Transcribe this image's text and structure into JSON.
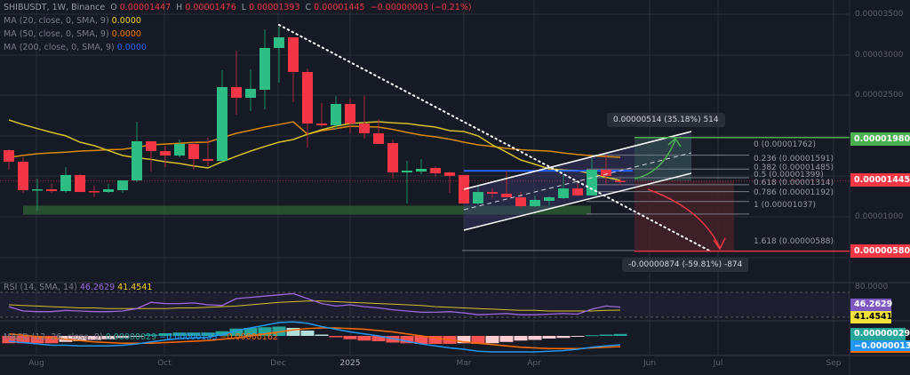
{
  "header": {
    "symbol": "SHIBUSDT, 1W, Binance",
    "o_label": "O",
    "o": "0.00001447",
    "h_label": "H",
    "h": "0.00001476",
    "l_label": "L",
    "l": "0.00001393",
    "c_label": "C",
    "c": "0.00001445",
    "change": "−0.00000003 (−0.21%)"
  },
  "indicators": {
    "ma20": {
      "label": "MA (20, close, 0, SMA, 9)",
      "value": "0.0000",
      "color": "#f2d024"
    },
    "ma50": {
      "label": "MA (50, close, 0, SMA, 9)",
      "value": "0.0000",
      "color": "#f57c00"
    },
    "ma200": {
      "label": "MA (200, close, 0, SMA, 9)",
      "value": "0.0000",
      "color": "#2962ff"
    },
    "rsi": {
      "label": "RSI (14, SMA, 14)",
      "value": "46.2629",
      "sma_value": "41.4541"
    },
    "macd": {
      "label": "MACD (12, 26, close, 9)",
      "hist": "0.00000029",
      "macd": "−0.00000133",
      "signal": "−0.00000162"
    }
  },
  "price_axis": [
    "0.00003500",
    "0.00003000",
    "0.00002500",
    "0.00001000"
  ],
  "price_tags": {
    "target": "0.00001980",
    "current": "0.00001445",
    "stop": "0.00000580"
  },
  "panel_tags": {
    "rsi_axis": "80.0000",
    "rsi": "46.2629",
    "rsi_sma": "41.4541",
    "hist": "0.00000029",
    "macd": "−0.00000133"
  },
  "time_axis": [
    "Aug",
    "Oct",
    "Dec",
    "2025",
    "Mar",
    "Apr",
    "Jun",
    "Jul",
    "Sep"
  ],
  "fib_levels": [
    {
      "label": "0 (0.00001762)",
      "price": 1.762e-05
    },
    {
      "label": "0.236 (0.00001591)",
      "price": 1.591e-05
    },
    {
      "label": "0.382 (0.00001485)",
      "price": 1.485e-05
    },
    {
      "label": "0.5 (0.00001399)",
      "price": 1.399e-05
    },
    {
      "label": "0.618 (0.00001314)",
      "price": 1.314e-05
    },
    {
      "label": "0.786 (0.00001192)",
      "price": 1.192e-05
    },
    {
      "label": "1 (0.00001037)",
      "price": 1.037e-05
    },
    {
      "label": "1.618 (0.00000588)",
      "price": 5.88e-06
    }
  ],
  "measures": {
    "up": "0.00000514 (35.18%) 514",
    "down": "-0.00000874 (-59.81%) -874"
  },
  "colors": {
    "up": "#26a69a",
    "up_body": "#2ebd85",
    "down": "#f23645",
    "bg": "#161a25",
    "grid": "#2a2e39",
    "target": "#4caf50",
    "rsi": "#9c6ade",
    "macd": "#2196f3",
    "signal": "#ff6d00"
  },
  "chart_data": {
    "type": "candlestick",
    "interval": "1W",
    "ylim": [
      0,
      3.5e-05
    ],
    "candles": [
      [
        1.824e-05,
        1.835e-05,
        1.583e-05,
        1.682e-05
      ],
      [
        1.682e-05,
        1.737e-05,
        1.298e-05,
        1.331e-05
      ],
      [
        1.331e-05,
        1.474e-05,
        1.079e-05,
        1.342e-05
      ],
      [
        1.342e-05,
        1.408e-05,
        1.298e-05,
        1.32e-05
      ],
      [
        1.32e-05,
        1.616e-05,
        1.298e-05,
        1.518e-05
      ],
      [
        1.518e-05,
        1.528e-05,
        1.309e-05,
        1.309e-05
      ],
      [
        1.32e-05,
        1.386e-05,
        1.244e-05,
        1.309e-05
      ],
      [
        1.309e-05,
        1.408e-05,
        1.298e-05,
        1.342e-05
      ],
      [
        1.331e-05,
        1.452e-05,
        1.298e-05,
        1.452e-05
      ],
      [
        1.452e-05,
        2.175e-05,
        1.43e-05,
        1.934e-05
      ],
      [
        1.934e-05,
        1.934e-05,
        1.561e-05,
        1.813e-05
      ],
      [
        1.813e-05,
        1.879e-05,
        1.616e-05,
        1.758e-05
      ],
      [
        1.758e-05,
        1.956e-05,
        1.737e-05,
        1.901e-05
      ],
      [
        1.901e-05,
        1.934e-05,
        1.583e-05,
        1.715e-05
      ],
      [
        1.715e-05,
        1.978e-05,
        1.627e-05,
        1.693e-05
      ],
      [
        1.693e-05,
        2.81e-05,
        1.671e-05,
        2.602e-05
      ],
      [
        2.602e-05,
        3.051e-05,
        2.262e-05,
        2.47e-05
      ],
      [
        2.47e-05,
        2.821e-05,
        2.306e-05,
        2.58e-05
      ],
      [
        2.569e-05,
        3.314e-05,
        2.328e-05,
        3.084e-05
      ],
      [
        3.084e-05,
        3.347e-05,
        2.657e-05,
        3.215e-05
      ],
      [
        3.215e-05,
        3.215e-05,
        2.416e-05,
        2.788e-05
      ],
      [
        2.788e-05,
        2.832e-05,
        1.857e-05,
        2.153e-05
      ],
      [
        2.153e-05,
        2.405e-05,
        2.109e-05,
        2.131e-05
      ],
      [
        2.131e-05,
        2.492e-05,
        2.076e-05,
        2.394e-05
      ],
      [
        2.394e-05,
        2.46e-05,
        2.032e-05,
        2.153e-05
      ],
      [
        2.153e-05,
        2.492e-05,
        1.967e-05,
        2.032e-05
      ],
      [
        2.032e-05,
        2.208e-05,
        1.901e-05,
        1.901e-05
      ],
      [
        1.912e-05,
        1.956e-05,
        1.474e-05,
        1.55e-05
      ],
      [
        1.55e-05,
        1.693e-05,
        1.167e-05,
        1.572e-05
      ],
      [
        1.561e-05,
        1.715e-05,
        1.528e-05,
        1.594e-05
      ],
      [
        1.605e-05,
        1.627e-05,
        1.496e-05,
        1.539e-05
      ],
      [
        1.55e-05,
        1.561e-05,
        1.298e-05,
        1.507e-05
      ],
      [
        1.518e-05,
        1.518e-05,
        1.156e-05,
        1.167e-05
      ],
      [
        1.167e-05,
        1.375e-05,
        1.145e-05,
        1.309e-05
      ],
      [
        1.309e-05,
        1.353e-05,
        1.233e-05,
        1.288e-05
      ],
      [
        1.288e-05,
        1.572e-05,
        1.244e-05,
        1.244e-05
      ],
      [
        1.244e-05,
        1.309e-05,
        1.112e-05,
        1.134e-05
      ],
      [
        1.134e-05,
        1.266e-05,
        1.123e-05,
        1.211e-05
      ],
      [
        1.2e-05,
        1.255e-05,
        1.145e-05,
        1.244e-05
      ],
      [
        1.233e-05,
        1.528e-05,
        1.222e-05,
        1.353e-05
      ],
      [
        1.353e-05,
        1.419e-05,
        1.255e-05,
        1.266e-05
      ],
      [
        1.266e-05,
        1.726e-05,
        1.266e-05,
        1.583e-05
      ],
      [
        1.583e-05,
        1.78e-05,
        1.397e-05,
        1.507e-05
      ],
      [
        1.447e-05,
        1.476e-05,
        1.393e-05,
        1.445e-05
      ]
    ],
    "ma_yellow": [
      2.197e-05,
      2.14e-05,
      2.09e-05,
      2.043e-05,
      2e-05,
      1.923e-05,
      1.88e-05,
      1.82e-05,
      1.758e-05,
      1.73e-05,
      1.71e-05,
      1.682e-05,
      1.66e-05,
      1.63e-05,
      1.605e-05,
      1.682e-05,
      1.75e-05,
      1.813e-05,
      1.87e-05,
      1.923e-05,
      1.956e-05,
      2.02e-05,
      2.076e-05,
      2.12e-05,
      2.153e-05,
      2.165e-05,
      2.175e-05,
      2.16e-05,
      2.153e-05,
      2.13e-05,
      2.109e-05,
      2.065e-05,
      2.054e-05,
      2e-05,
      1.89e-05,
      1.8e-05,
      1.704e-05,
      1.65e-05,
      1.594e-05,
      1.58e-05,
      1.572e-05,
      1.53e-05,
      1.49e-05,
      1.452e-05
    ],
    "ma_orange": [
      1.737e-05,
      1.76e-05,
      1.78e-05,
      1.791e-05,
      1.8e-05,
      1.813e-05,
      1.82e-05,
      1.83e-05,
      1.835e-05,
      1.86e-05,
      1.89e-05,
      1.9e-05,
      1.91e-05,
      1.92e-05,
      1.923e-05,
      1.98e-05,
      2.032e-05,
      2.07e-05,
      2.109e-05,
      2.14e-05,
      2.175e-05,
      2.021e-05,
      2.065e-05,
      2.09e-05,
      2.12e-05,
      2.115e-05,
      2.109e-05,
      2.08e-05,
      2.043e-05,
      2.01e-05,
      1.989e-05,
      1.96e-05,
      1.923e-05,
      1.89e-05,
      1.87e-05,
      1.846e-05,
      1.83e-05,
      1.82e-05,
      1.813e-05,
      1.79e-05,
      1.77e-05,
      1.755e-05,
      1.745e-05,
      1.737e-05
    ],
    "rsi": [
      47,
      40,
      39,
      39,
      41,
      40,
      39,
      39,
      40,
      44,
      54,
      52,
      52,
      53,
      50,
      49,
      60,
      62,
      64,
      66,
      68,
      60,
      52,
      48,
      50,
      47,
      45,
      42,
      40,
      38,
      38,
      39,
      37,
      34,
      35,
      36,
      34,
      34,
      35,
      36,
      35,
      43,
      48,
      46.26
    ],
    "rsi_sma": [
      50,
      49,
      48,
      47,
      46,
      45,
      45,
      44,
      44,
      44,
      44,
      44,
      45,
      45,
      46,
      47,
      48,
      50,
      52,
      54,
      55,
      56,
      56,
      55,
      54,
      53,
      52,
      51,
      50,
      49,
      47,
      46,
      45,
      44,
      43,
      42,
      41,
      41,
      40,
      40,
      40,
      40,
      41,
      41.45
    ],
    "rsi_levels": [
      80,
      70,
      30
    ],
    "macd": [
      -8e-07,
      -1e-06,
      -1.2e-06,
      -1.4e-06,
      -1.4e-06,
      -1.5e-06,
      -1.5e-06,
      -1.5e-06,
      -1.4e-06,
      -1.2e-06,
      -9e-07,
      -6e-07,
      -4e-07,
      -3e-07,
      -2e-07,
      2e-07,
      8e-07,
      1.2e-06,
      1.6e-06,
      2e-06,
      2.1e-06,
      1.9e-06,
      1.4e-06,
      1e-06,
      6e-07,
      3e-07,
      0,
      -4e-07,
      -8e-07,
      -1.2e-06,
      -1.5e-06,
      -1.8e-06,
      -2e-06,
      -2.3e-06,
      -2.4e-06,
      -2.4e-06,
      -2.4e-06,
      -2.4e-06,
      -2.3e-06,
      -2.2e-06,
      -2e-06,
      -1.7e-06,
      -1.5e-06,
      -1.33e-06
    ],
    "signal": [
      3e-07,
      1e-07,
      -1e-07,
      -3e-07,
      -5e-07,
      -7e-07,
      -9e-07,
      -1e-06,
      -1.1e-06,
      -1.1e-06,
      -1.1e-06,
      -1e-06,
      -9e-07,
      -8e-07,
      -7e-07,
      -5e-07,
      -3e-07,
      0,
      3e-07,
      6e-07,
      9e-07,
      1.1e-06,
      1.2e-06,
      1.2e-06,
      1.1e-06,
      1e-06,
      8e-07,
      6e-07,
      3e-07,
      0,
      -3e-07,
      -6e-07,
      -9e-07,
      -1.1e-06,
      -1.3e-06,
      -1.5e-06,
      -1.7e-06,
      -1.8e-06,
      -1.9e-06,
      -1.9e-06,
      -1.9e-06,
      -1.8e-06,
      -1.7e-06,
      -1.62e-06
    ],
    "support_zone": [
      1.03e-05,
      1.14e-05
    ],
    "resistance_line": 1.57e-05,
    "target_price": 1.98e-05,
    "current_price": 1.445e-05,
    "stop_price": 5.8e-06
  }
}
